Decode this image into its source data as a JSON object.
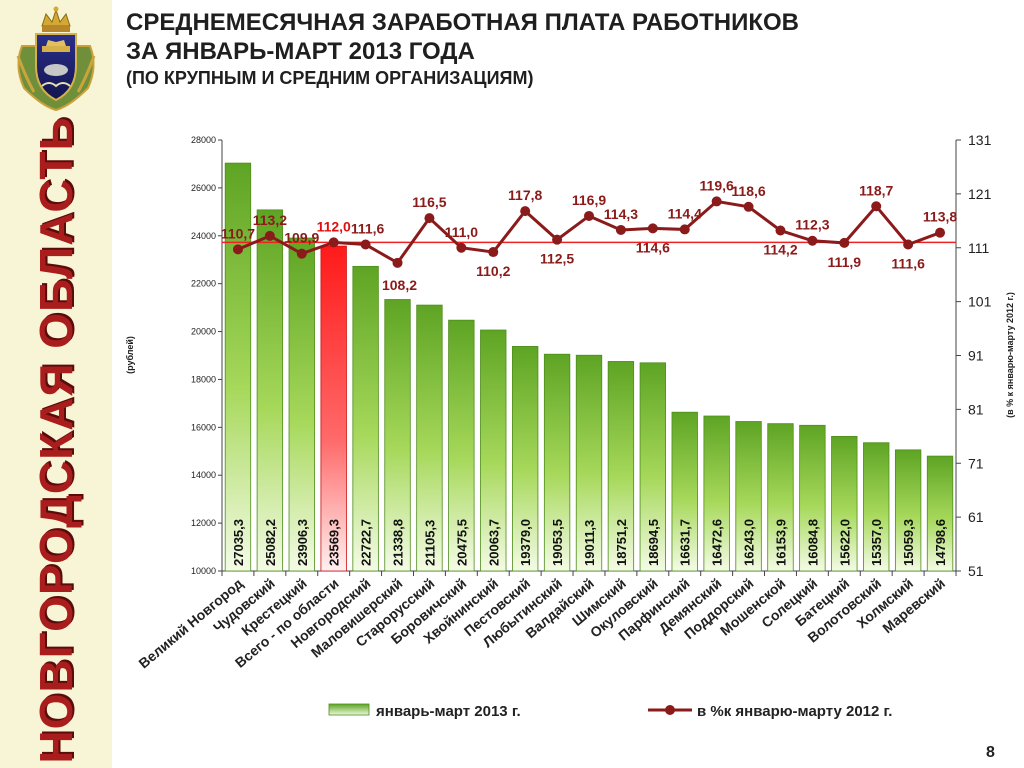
{
  "title": {
    "line1": "СРЕДНЕМЕСЯЧНАЯ ЗАРАБОТНАЯ ПЛАТА РАБОТНИКОВ",
    "line2": "ЗА ЯНВАРЬ-МАРТ 2013 ГОДА",
    "line3": "(ПО КРУПНЫМ И СРЕДНИМ ОРГАНИЗАЦИЯМ)"
  },
  "sidebar": {
    "region_title": "НОВГОРОДСКАЯ ОБЛАСТЬ"
  },
  "page_number": "8",
  "chart_data": {
    "type": "bar",
    "categories": [
      "Великий Новгород",
      "Чудовский",
      "Крестецкий",
      "Всего - по области",
      "Новгородский",
      "Маловишерский",
      "Старорусский",
      "Боровичский",
      "Хвойнинский",
      "Пестовский",
      "Любытинский",
      "Валдайский",
      "Шимский",
      "Окуловский",
      "Парфинский",
      "Демянский",
      "Поддорский",
      "Мошенской",
      "Солецкий",
      "Батецкий",
      "Волотовский",
      "Холмский",
      "Маревский"
    ],
    "series": [
      {
        "name": "январь-март 2013 г.",
        "type": "bar",
        "axis": "left",
        "values": [
          27035.3,
          25082.2,
          23906.3,
          23569.3,
          22722.7,
          21338.8,
          21105.3,
          20475.5,
          20063.7,
          19379.0,
          19053.5,
          19011.3,
          18751.2,
          18694.5,
          16631.7,
          16472.6,
          16243.0,
          16153.9,
          16084.8,
          15622.0,
          15357.0,
          15059.3,
          14798.6
        ],
        "labels": [
          "27035,3",
          "25082,2",
          "23906,3",
          "23569,3",
          "22722,7",
          "21338,8",
          "21105,3",
          "20475,5",
          "20063,7",
          "19379,0",
          "19053,5",
          "19011,3",
          "18751,2",
          "18694,5",
          "16631,7",
          "16472,6",
          "16243,0",
          "16153,9",
          "16084,8",
          "15622,0",
          "15357,0",
          "15059,3",
          "14798,6"
        ],
        "color": "#7cc13a",
        "highlight_index": 3,
        "highlight_color": "#ff2a2a"
      },
      {
        "name": "в %к январю-марту 2012 г.",
        "type": "line",
        "axis": "right",
        "values": [
          110.7,
          113.2,
          109.9,
          112.0,
          111.6,
          108.2,
          116.5,
          111.0,
          110.2,
          117.8,
          112.5,
          116.9,
          114.3,
          114.6,
          114.4,
          119.6,
          118.6,
          114.2,
          112.3,
          111.9,
          118.7,
          111.6,
          113.8
        ],
        "labels": [
          "110,7",
          "113,2",
          "109,9",
          "112,0",
          "111,6",
          "108,2",
          "116,5",
          "111,0",
          "110,2",
          "117,8",
          "112,5",
          "116,9",
          "114,3",
          "114,6",
          "114,4",
          "119,6",
          "118,6",
          "114,2",
          "112,3",
          "111,9",
          "118,7",
          "111,6",
          "113,8"
        ],
        "color": "#8b1a1a"
      }
    ],
    "reference_line": {
      "axis": "right",
      "value": 112.0,
      "color": "#ee2222"
    },
    "y_left": {
      "label": "(рублей)",
      "min": 10000,
      "max": 28000,
      "ticks": [
        10000,
        12000,
        14000,
        16000,
        18000,
        20000,
        22000,
        24000,
        26000,
        28000
      ]
    },
    "y_right": {
      "label": "(в % к январю-марту 2012 г.)",
      "min": 51,
      "max": 131,
      "ticks": [
        51,
        61,
        71,
        81,
        91,
        101,
        111,
        121,
        131
      ]
    },
    "legend": {
      "position": "bottom",
      "bar_label": "январь-март 2013 г.",
      "line_label": "в %к  январю-марту 2012 г."
    }
  }
}
